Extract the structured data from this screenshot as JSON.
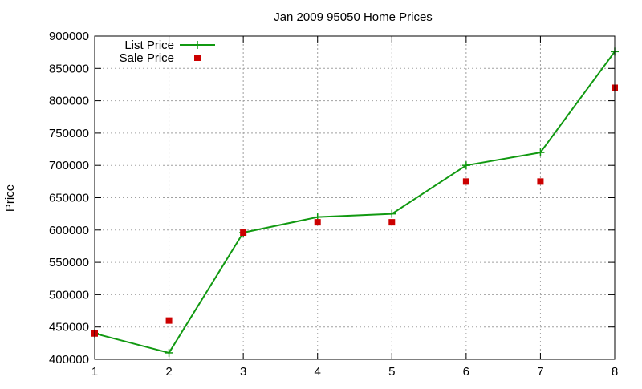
{
  "chart_data": {
    "type": "line",
    "title": "Jan 2009 95050 Home Prices",
    "xlabel": "",
    "ylabel": "Price",
    "x": [
      1,
      2,
      3,
      4,
      5,
      6,
      7,
      8
    ],
    "xlim": [
      1,
      8
    ],
    "ylim": [
      400000,
      900000
    ],
    "xticks": [
      "1",
      "2",
      "3",
      "4",
      "5",
      "6",
      "7",
      "8"
    ],
    "yticks": [
      "400000",
      "450000",
      "500000",
      "550000",
      "600000",
      "650000",
      "700000",
      "750000",
      "800000",
      "850000",
      "900000"
    ],
    "grid": true,
    "legend_position": "top-left",
    "series": [
      {
        "name": "List Price",
        "style": "linespoints",
        "marker": "plus",
        "color": "#119911",
        "values": [
          440000,
          410000,
          596000,
          620000,
          625000,
          700000,
          720000,
          876000
        ]
      },
      {
        "name": "Sale Price",
        "style": "points",
        "marker": "square",
        "color": "#cc0000",
        "values": [
          440000,
          460000,
          596000,
          612000,
          612000,
          675000,
          675000,
          820000
        ]
      }
    ]
  }
}
